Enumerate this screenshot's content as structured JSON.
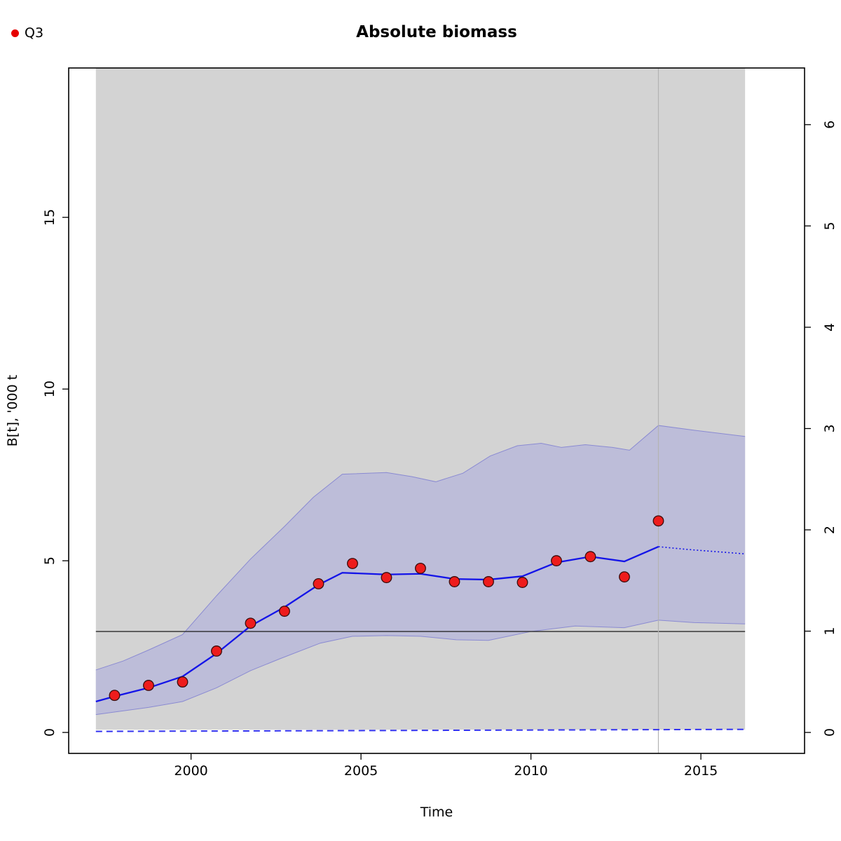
{
  "title": "Absolute biomass",
  "legend": {
    "label": "Q3",
    "marker_color": "#e60000"
  },
  "chart_data": {
    "type": "line",
    "title": "Absolute biomass",
    "xlabel": "Time",
    "ylabel": "B[t], '000 t",
    "xlim": [
      1996.4,
      2018.05
    ],
    "ylim": [
      -0.61,
      19.35
    ],
    "x_ticks": [
      2000,
      2005,
      2010,
      2015
    ],
    "y_ticks_left": [
      0,
      5,
      10,
      15
    ],
    "y_ticks_right": [
      0,
      1,
      2,
      3,
      4,
      5,
      6
    ],
    "right_axis_factor": 2.95,
    "grid": false,
    "legend_position": "top-left-outside",
    "series": [
      {
        "name": "bmsy-confidence-region",
        "type": "rect",
        "x0": 1997.2,
        "x1": 2016.3,
        "y0": 0.08,
        "y1": 19.35,
        "color": "#d3d3d3"
      },
      {
        "name": "biomass-confidence-band",
        "type": "band",
        "fill": "#bdbdd9",
        "edge": "#8a8ad2",
        "x_upper": [
          1997.2,
          1998.0,
          1998.75,
          1999.75,
          2000.75,
          2001.75,
          2002.75,
          2003.6,
          2004.45,
          2005.75,
          2006.5,
          2007.2,
          2008.0,
          2008.8,
          2009.6,
          2010.3,
          2010.9,
          2011.6,
          2012.4,
          2012.9,
          2013.75,
          2014.8,
          2016.3
        ],
        "y_upper": [
          1.82,
          2.08,
          2.4,
          2.85,
          3.98,
          5.05,
          6.0,
          6.85,
          7.52,
          7.57,
          7.45,
          7.3,
          7.55,
          8.05,
          8.35,
          8.42,
          8.3,
          8.38,
          8.3,
          8.22,
          8.94,
          8.8,
          8.62
        ],
        "x_lower": [
          1997.2,
          1998.75,
          1999.75,
          2000.75,
          2001.75,
          2002.6,
          2003.8,
          2004.75,
          2005.75,
          2006.75,
          2007.8,
          2008.75,
          2010.0,
          2011.3,
          2012.75,
          2013.75,
          2014.8,
          2016.3
        ],
        "y_lower": [
          0.52,
          0.73,
          0.9,
          1.3,
          1.8,
          2.14,
          2.6,
          2.8,
          2.82,
          2.8,
          2.7,
          2.68,
          2.94,
          3.1,
          3.05,
          3.27,
          3.2,
          3.16
        ]
      },
      {
        "name": "bmsy-reference-line",
        "type": "hline",
        "y": 2.94,
        "x0": 1997.2,
        "x1": 2016.3,
        "color": "#2a2a2a"
      },
      {
        "name": "end-of-data-vline",
        "type": "vline",
        "x": 2013.75,
        "color": "#b3b3b3"
      },
      {
        "name": "near-zero-dashed-line",
        "type": "dashed-line",
        "color": "#3333f0",
        "x": [
          1997.2,
          2016.3
        ],
        "y": [
          0.03,
          0.09
        ]
      },
      {
        "name": "biomass-estimate",
        "type": "line",
        "color": "#1414e8",
        "x": [
          1997.2,
          1997.75,
          1998.75,
          1999.75,
          2000.75,
          2001.75,
          2002.75,
          2003.75,
          2004.45,
          2005.75,
          2006.75,
          2007.75,
          2008.75,
          2009.75,
          2010.75,
          2011.75,
          2012.75,
          2013.75
        ],
        "y": [
          0.9,
          1.05,
          1.3,
          1.63,
          2.3,
          3.1,
          3.65,
          4.3,
          4.65,
          4.6,
          4.62,
          4.47,
          4.45,
          4.55,
          4.95,
          5.12,
          4.98,
          5.41
        ]
      },
      {
        "name": "biomass-forecast",
        "type": "dotted-line",
        "color": "#1414e8",
        "x": [
          2013.75,
          2014.6,
          2016.3
        ],
        "y": [
          5.41,
          5.33,
          5.2
        ]
      },
      {
        "name": "Q3",
        "type": "points",
        "color": "#ee1c1c",
        "edge": "#3a0d0d",
        "x": [
          1997.75,
          1998.75,
          1999.75,
          2000.75,
          2001.75,
          2002.75,
          2003.75,
          2004.75,
          2005.75,
          2006.75,
          2007.75,
          2008.75,
          2009.75,
          2010.75,
          2011.75,
          2012.75,
          2013.75
        ],
        "y": [
          1.08,
          1.37,
          1.47,
          2.37,
          3.18,
          3.53,
          4.33,
          4.92,
          4.51,
          4.78,
          4.39,
          4.39,
          4.37,
          5.0,
          5.12,
          4.53,
          6.16
        ]
      }
    ]
  }
}
